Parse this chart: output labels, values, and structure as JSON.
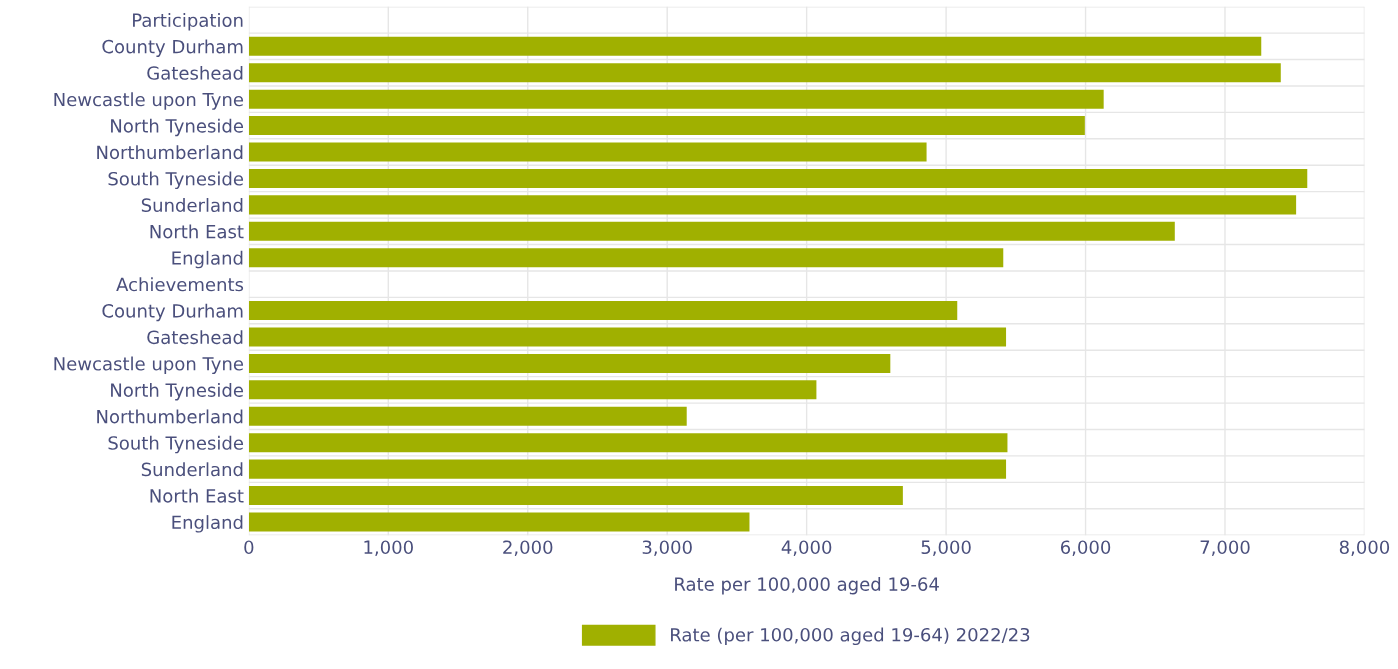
{
  "chart_data": {
    "type": "bar",
    "orientation": "horizontal",
    "categories": [
      "Participation",
      "County Durham",
      "Gateshead",
      "Newcastle upon Tyne",
      "North Tyneside",
      "Northumberland",
      "South Tyneside",
      "Sunderland",
      "North East",
      "England",
      "Achievements",
      "County Durham",
      "Gateshead",
      "Newcastle upon Tyne",
      "North Tyneside",
      "Northumberland",
      "South Tyneside",
      "Sunderland",
      "North East",
      "England"
    ],
    "series": [
      {
        "name": "Rate (per 100,000 aged 19-64) 2022/23",
        "color": "#a0b000",
        "values": [
          null,
          7260,
          7400,
          6130,
          5995,
          4860,
          7590,
          7510,
          6640,
          5410,
          null,
          5080,
          5430,
          4600,
          4070,
          3140,
          5440,
          5430,
          4690,
          3590
        ]
      }
    ],
    "xlabel": "Rate per 100,000 aged 19-64",
    "xlim": [
      0,
      8000
    ],
    "xticks": [
      {
        "value": 0,
        "label": "0"
      },
      {
        "value": 1000,
        "label": "1,000"
      },
      {
        "value": 2000,
        "label": "2,000"
      },
      {
        "value": 3000,
        "label": "3,000"
      },
      {
        "value": 4000,
        "label": "4,000"
      },
      {
        "value": 5000,
        "label": "5,000"
      },
      {
        "value": 6000,
        "label": "6,000"
      },
      {
        "value": 7000,
        "label": "7,000"
      },
      {
        "value": 8000,
        "label": "8,000"
      }
    ],
    "grid": true,
    "legend": "bottom"
  }
}
